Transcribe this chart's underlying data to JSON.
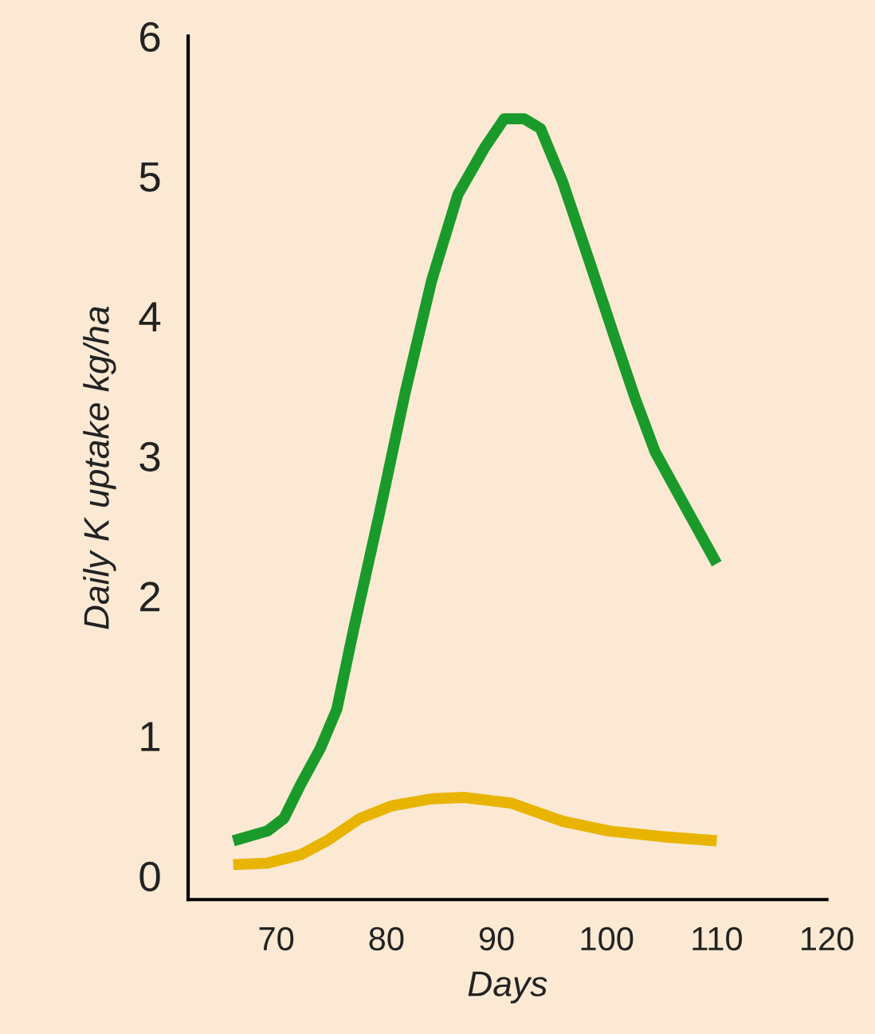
{
  "chart_data": {
    "type": "line",
    "xlabel": "Days",
    "ylabel": "Daily K uptake kg/ha",
    "xlim": [
      62,
      120
    ],
    "ylim": [
      -0.17,
      6
    ],
    "xticks": [
      70,
      80,
      90,
      100,
      110,
      120
    ],
    "yticks": [
      0,
      1,
      2,
      3,
      4,
      5,
      6
    ],
    "grid": false,
    "legend": false,
    "line_style": "solid",
    "marker": "none",
    "series": [
      {
        "color": "#1a9a2a",
        "x": [
          66.1,
          69.2,
          70.7,
          72.2,
          74.0,
          75.5,
          77.0,
          79.4,
          81.7,
          84.1,
          86.5,
          88.9,
          90.7,
          92.5,
          94.0,
          96.0,
          98.4,
          100.8,
          102.6,
          104.4,
          107.4,
          110.0
        ],
        "values": [
          0.25,
          0.32,
          0.41,
          0.65,
          0.91,
          1.19,
          1.75,
          2.6,
          3.45,
          4.25,
          4.87,
          5.2,
          5.41,
          5.41,
          5.34,
          4.96,
          4.4,
          3.83,
          3.41,
          3.03,
          2.6,
          2.23
        ]
      },
      {
        "color": "#e8b400",
        "x": [
          66.1,
          69.2,
          72.2,
          74.6,
          77.6,
          80.5,
          84.1,
          87.1,
          91.3,
          96.0,
          100.2,
          105.0,
          110.0
        ],
        "values": [
          0.08,
          0.09,
          0.15,
          0.25,
          0.41,
          0.5,
          0.55,
          0.56,
          0.52,
          0.39,
          0.32,
          0.28,
          0.25
        ]
      }
    ]
  }
}
